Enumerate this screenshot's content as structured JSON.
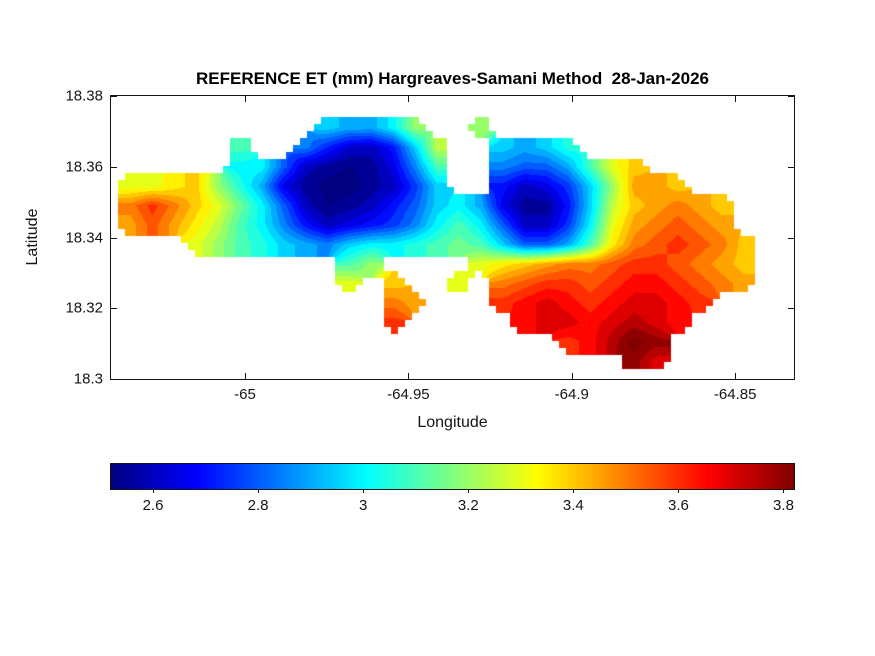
{
  "chart_data": {
    "type": "heatmap",
    "title": "REFERENCE ET (mm) Hargreaves-Samani Method  28-Jan-2026",
    "xlabel": "Longitude",
    "ylabel": "Latitude",
    "units": "mm",
    "xlim": [
      -65.041,
      -64.832
    ],
    "ylim": [
      18.3,
      18.38
    ],
    "x_ticks": {
      "values": [
        -65,
        -64.95,
        -64.9,
        -64.85
      ],
      "labels": [
        "-65",
        "-64.95",
        "-64.9",
        "-64.85"
      ]
    },
    "y_ticks": {
      "values": [
        18.38,
        18.36,
        18.34,
        18.32,
        18.3
      ],
      "labels": [
        "18.38",
        "18.36",
        "18.34",
        "18.32",
        "18.3"
      ]
    },
    "colorbar": {
      "orientation": "horizontal",
      "range": [
        2.52,
        3.82
      ],
      "tick_values": [
        2.6,
        2.8,
        3,
        3.2,
        3.4,
        3.6,
        3.8
      ],
      "tick_labels": [
        "2.6",
        "2.8",
        "3",
        "3.2",
        "3.4",
        "3.6",
        "3.8"
      ]
    },
    "colormap": {
      "name": "jet",
      "stops": [
        [
          0,
          [
            0,
            0,
            128
          ]
        ],
        [
          0.125,
          [
            0,
            0,
            255
          ]
        ],
        [
          0.375,
          [
            0,
            255,
            255
          ]
        ],
        [
          0.625,
          [
            255,
            255,
            0
          ]
        ],
        [
          0.875,
          [
            255,
            0,
            0
          ]
        ],
        [
          1,
          [
            128,
            0,
            0
          ]
        ]
      ]
    },
    "contour_step": 0.05,
    "grid": {
      "lon_start": -65.035,
      "lon_step": 0.0067,
      "lat_start": 18.371,
      "lat_step": 0.0055,
      "nx": 30,
      "ny": 13,
      "values": [
        [
          null,
          null,
          null,
          null,
          null,
          null,
          null,
          null,
          null,
          2.95,
          2.9,
          2.9,
          3.0,
          3.2,
          null,
          null,
          3.2,
          null,
          null,
          null,
          null,
          null,
          null,
          null,
          null,
          null,
          null,
          null,
          null,
          null
        ],
        [
          null,
          null,
          null,
          null,
          null,
          3.1,
          null,
          null,
          2.85,
          2.72,
          2.62,
          2.6,
          2.7,
          2.95,
          3.25,
          null,
          null,
          2.95,
          2.9,
          2.95,
          3.05,
          null,
          null,
          null,
          null,
          null,
          null,
          null,
          null,
          null
        ],
        [
          null,
          null,
          null,
          null,
          null,
          3.0,
          3.0,
          2.8,
          2.6,
          2.55,
          2.52,
          2.55,
          2.65,
          2.85,
          3.1,
          null,
          null,
          2.85,
          2.8,
          2.8,
          2.9,
          3.1,
          3.3,
          3.4,
          null,
          null,
          null,
          null,
          null,
          null
        ],
        [
          3.3,
          3.3,
          3.35,
          3.4,
          3.2,
          3.05,
          2.9,
          2.65,
          2.55,
          2.5,
          2.5,
          2.55,
          2.6,
          2.75,
          2.95,
          null,
          null,
          2.7,
          2.6,
          2.65,
          2.75,
          2.95,
          3.2,
          3.45,
          3.45,
          3.4,
          null,
          null,
          null,
          null
        ],
        [
          3.5,
          3.6,
          3.5,
          3.4,
          3.3,
          3.15,
          3.0,
          2.8,
          2.6,
          2.52,
          2.55,
          2.6,
          2.7,
          2.8,
          2.95,
          3.0,
          2.9,
          2.65,
          2.55,
          2.55,
          2.7,
          2.95,
          3.25,
          3.4,
          3.45,
          3.5,
          3.45,
          3.4,
          null,
          null
        ],
        [
          3.45,
          3.55,
          3.45,
          3.35,
          3.25,
          3.1,
          3.0,
          2.85,
          2.7,
          2.6,
          2.65,
          2.7,
          2.75,
          2.85,
          3.0,
          3.1,
          3.0,
          2.8,
          2.6,
          2.6,
          2.75,
          3.0,
          3.3,
          3.45,
          3.5,
          3.55,
          3.5,
          3.45,
          null,
          null
        ],
        [
          null,
          null,
          null,
          3.3,
          3.2,
          3.1,
          3.05,
          2.95,
          2.9,
          2.85,
          2.95,
          3.0,
          3.0,
          3.05,
          3.1,
          3.15,
          3.1,
          2.95,
          2.8,
          2.8,
          2.9,
          3.1,
          3.35,
          3.5,
          3.55,
          3.6,
          3.55,
          3.5,
          3.4,
          null
        ],
        [
          null,
          null,
          null,
          null,
          null,
          null,
          null,
          null,
          null,
          null,
          3.1,
          3.2,
          null,
          null,
          null,
          null,
          3.3,
          3.35,
          3.4,
          3.45,
          3.5,
          3.5,
          3.55,
          3.6,
          3.6,
          3.55,
          3.5,
          3.45,
          3.4,
          null
        ],
        [
          null,
          null,
          null,
          null,
          null,
          null,
          null,
          null,
          null,
          null,
          3.3,
          null,
          3.4,
          null,
          null,
          3.3,
          null,
          3.5,
          3.55,
          3.6,
          3.6,
          3.55,
          3.6,
          3.65,
          3.65,
          3.6,
          3.55,
          3.5,
          3.45,
          null
        ],
        [
          null,
          null,
          null,
          null,
          null,
          null,
          null,
          null,
          null,
          null,
          null,
          null,
          3.5,
          3.45,
          null,
          null,
          null,
          3.6,
          3.65,
          3.7,
          3.65,
          3.6,
          3.65,
          3.7,
          3.7,
          3.65,
          3.6,
          null,
          null,
          null
        ],
        [
          null,
          null,
          null,
          null,
          null,
          null,
          null,
          null,
          null,
          null,
          null,
          null,
          3.6,
          null,
          null,
          null,
          null,
          null,
          3.65,
          3.7,
          3.7,
          3.65,
          3.7,
          3.75,
          3.7,
          3.65,
          null,
          null,
          null,
          null
        ],
        [
          null,
          null,
          null,
          null,
          null,
          null,
          null,
          null,
          null,
          null,
          null,
          null,
          null,
          null,
          null,
          null,
          null,
          null,
          null,
          null,
          3.6,
          3.65,
          3.75,
          3.85,
          3.8,
          null,
          null,
          null,
          null,
          null
        ],
        [
          null,
          null,
          null,
          null,
          null,
          null,
          null,
          null,
          null,
          null,
          null,
          null,
          null,
          null,
          null,
          null,
          null,
          null,
          null,
          null,
          null,
          null,
          null,
          3.8,
          3.7,
          null,
          null,
          null,
          null,
          null
        ]
      ]
    }
  }
}
